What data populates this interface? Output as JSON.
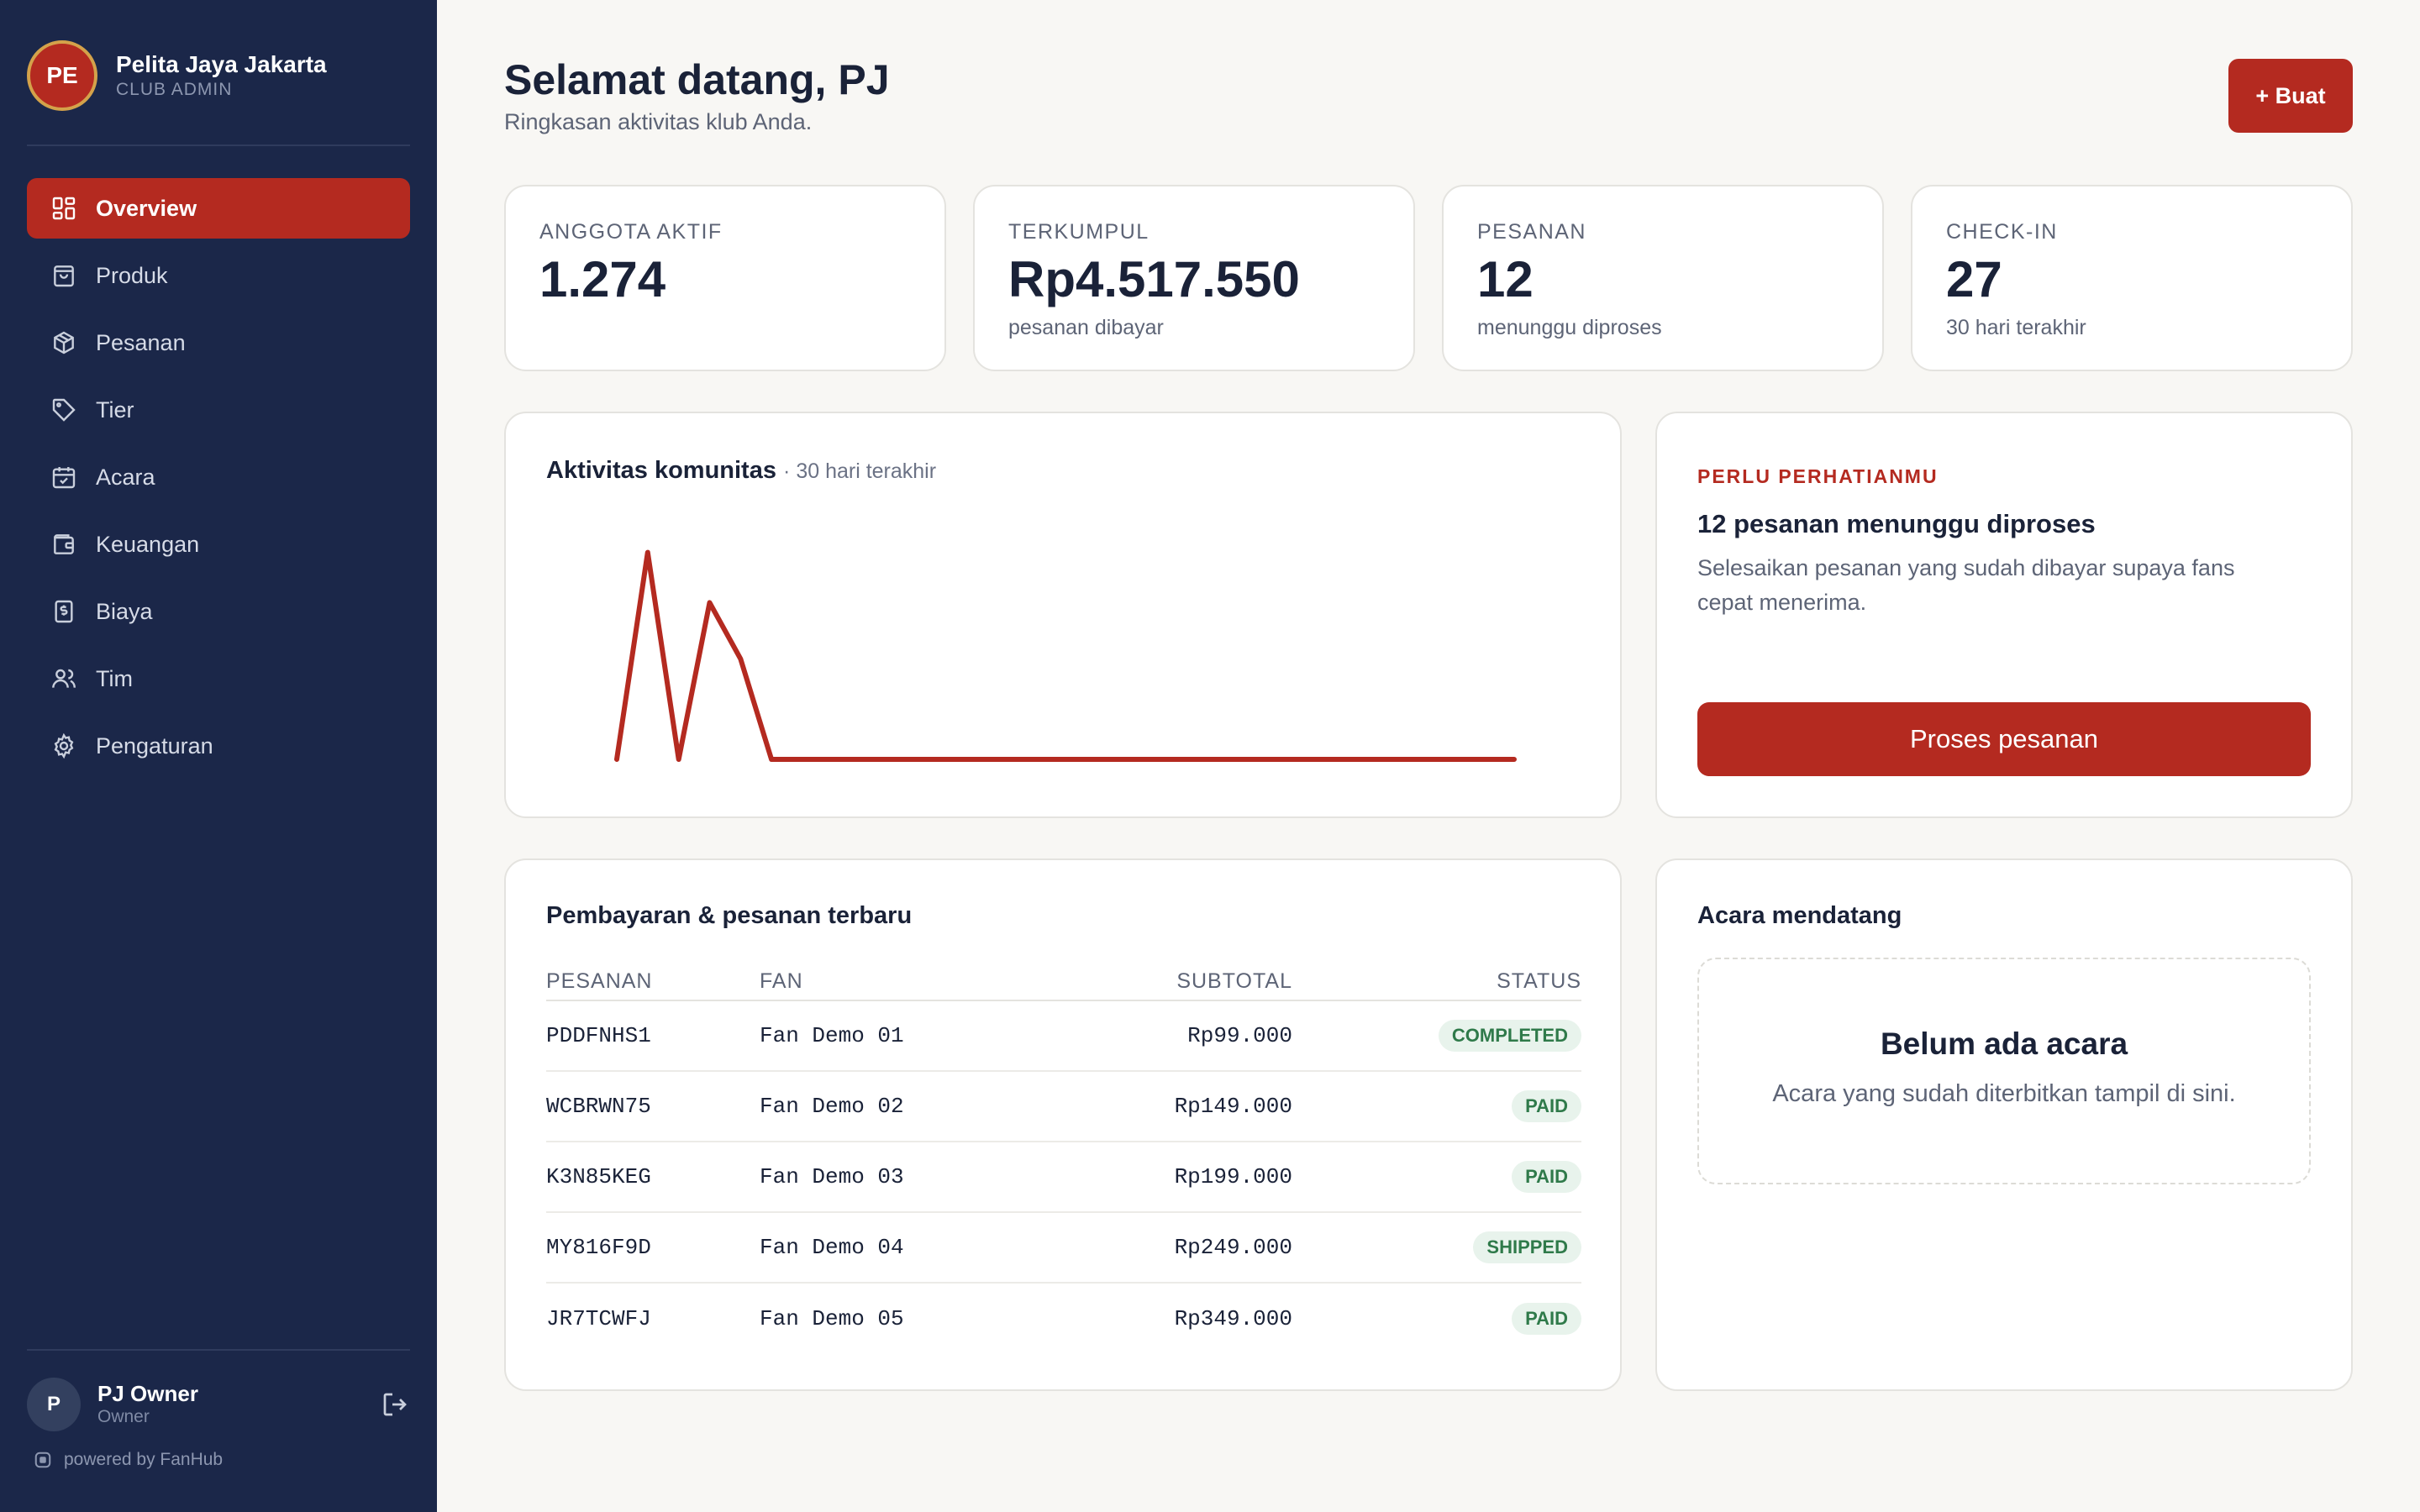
{
  "sidebar": {
    "club_initials": "PE",
    "club_name": "Pelita Jaya Jakarta",
    "club_role": "CLUB ADMIN",
    "items": [
      {
        "label": "Overview",
        "icon": "dashboard-icon",
        "active": true
      },
      {
        "label": "Produk",
        "icon": "shopping-bag-icon"
      },
      {
        "label": "Pesanan",
        "icon": "package-icon"
      },
      {
        "label": "Tier",
        "icon": "tag-icon"
      },
      {
        "label": "Acara",
        "icon": "calendar-icon"
      },
      {
        "label": "Keuangan",
        "icon": "wallet-icon"
      },
      {
        "label": "Biaya",
        "icon": "receipt-icon"
      },
      {
        "label": "Tim",
        "icon": "users-icon"
      },
      {
        "label": "Pengaturan",
        "icon": "gear-icon"
      }
    ],
    "user_initial": "P",
    "user_name": "PJ Owner",
    "user_role": "Owner",
    "powered_by": "powered by FanHub"
  },
  "header": {
    "title": "Selamat datang, PJ",
    "subtitle": "Ringkasan aktivitas klub Anda.",
    "create_label": "+ Buat"
  },
  "stats": [
    {
      "label": "ANGGOTA AKTIF",
      "value": "1.274",
      "sub": ""
    },
    {
      "label": "TERKUMPUL",
      "value": "Rp4.517.550",
      "sub": "pesanan dibayar"
    },
    {
      "label": "PESANAN",
      "value": "12",
      "sub": "menunggu diproses"
    },
    {
      "label": "CHECK-IN",
      "value": "27",
      "sub": "30 hari terakhir"
    }
  ],
  "activity": {
    "title": "Aktivitas komunitas",
    "subtitle": "· 30 hari terakhir"
  },
  "chart_data": {
    "type": "line",
    "title": "Aktivitas komunitas",
    "subtitle": "30 hari terakhir",
    "x": [
      1,
      2,
      3,
      4,
      5,
      6,
      7,
      8,
      9,
      10,
      11,
      12,
      13,
      14,
      15,
      16,
      17,
      18,
      19,
      20,
      21,
      22,
      23,
      24,
      25,
      26,
      27,
      28,
      29,
      30
    ],
    "series": [
      {
        "values": [
          0,
          7,
          0,
          5.3,
          3.4,
          0,
          0,
          0,
          0,
          0,
          0,
          0,
          0,
          0,
          0,
          0,
          0,
          0,
          0,
          0,
          0,
          0,
          0,
          0,
          0,
          0,
          0,
          0,
          0,
          0
        ]
      }
    ],
    "ylim": [
      0,
      7.3
    ],
    "grid": false,
    "color": "#b42a20"
  },
  "attention": {
    "kicker": "PERLU PERHATIANMU",
    "title": "12 pesanan menunggu diproses",
    "body": "Selesaikan pesanan yang sudah dibayar supaya fans cepat menerima.",
    "button": "Proses pesanan"
  },
  "orders": {
    "title": "Pembayaran & pesanan terbaru",
    "columns": [
      "PESANAN",
      "FAN",
      "SUBTOTAL",
      "STATUS"
    ],
    "rows": [
      {
        "id": "PDDFNHS1",
        "fan": "Fan Demo 01",
        "subtotal": "Rp99.000",
        "status": "COMPLETED"
      },
      {
        "id": "WCBRWN75",
        "fan": "Fan Demo 02",
        "subtotal": "Rp149.000",
        "status": "PAID"
      },
      {
        "id": "K3N85KEG",
        "fan": "Fan Demo 03",
        "subtotal": "Rp199.000",
        "status": "PAID"
      },
      {
        "id": "MY816F9D",
        "fan": "Fan Demo 04",
        "subtotal": "Rp249.000",
        "status": "SHIPPED"
      },
      {
        "id": "JR7TCWFJ",
        "fan": "Fan Demo 05",
        "subtotal": "Rp349.000",
        "status": "PAID"
      }
    ]
  },
  "events": {
    "title": "Acara mendatang",
    "empty_title": "Belum ada acara",
    "empty_sub": "Acara yang sudah diterbitkan tampil di sini."
  },
  "colors": {
    "sidebar_bg": "#1b2749",
    "accent": "#b42a20",
    "status_green": "#2f7a4a"
  }
}
